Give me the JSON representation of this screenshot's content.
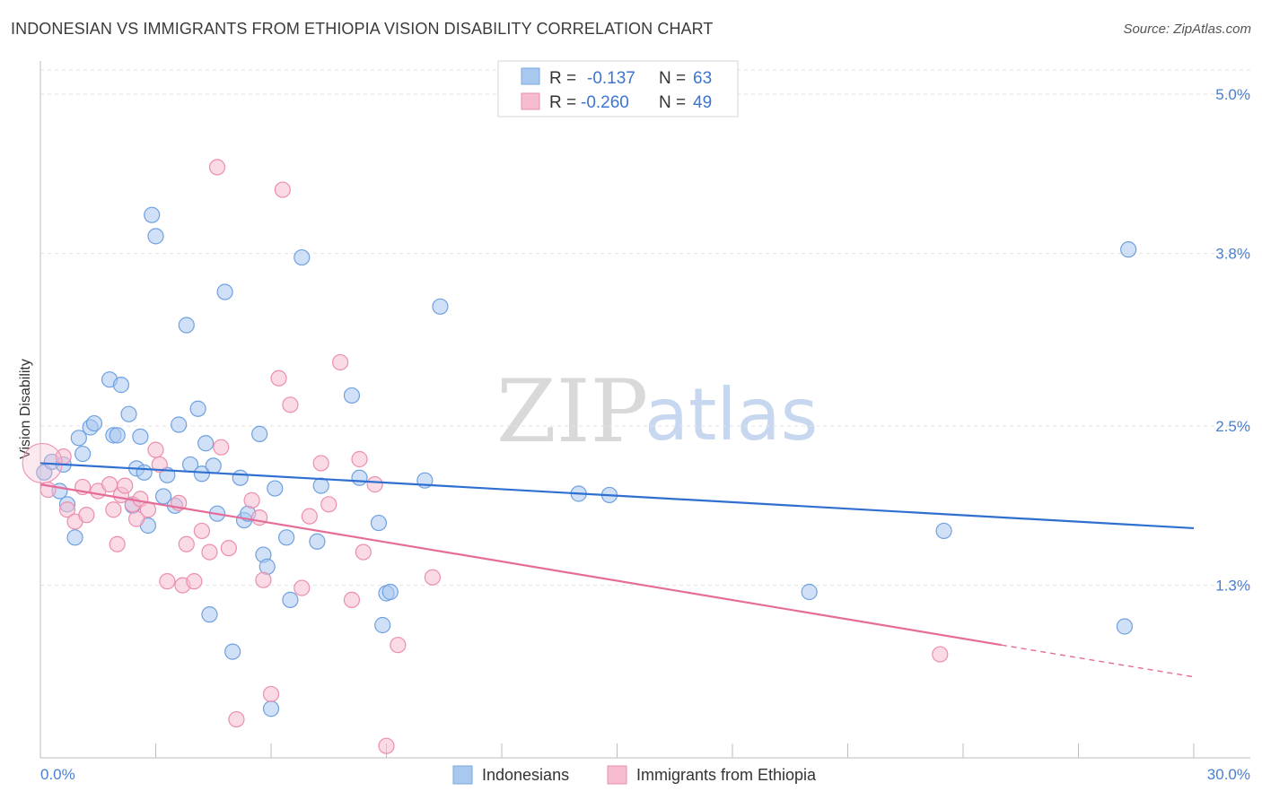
{
  "title": "INDONESIAN VS IMMIGRANTS FROM ETHIOPIA VISION DISABILITY CORRELATION CHART",
  "source": "Source: ZipAtlas.com",
  "watermark": {
    "zip": "ZIP",
    "atlas": "atlas"
  },
  "legend": {
    "rows": [
      {
        "r_label": "R =",
        "r_value": "-0.137",
        "n_label": "N =",
        "n_value": "63",
        "color": "#a9c8f0"
      },
      {
        "r_label": "R =",
        "r_value": "-0.260",
        "n_label": "N =",
        "n_value": "49",
        "color": "#f6bdd0"
      }
    ]
  },
  "bottom_legend": [
    {
      "label": "Indonesians",
      "color": "#a9c8f0"
    },
    {
      "label": "Immigrants from Ethiopia",
      "color": "#f6bdd0"
    }
  ],
  "chart_data": {
    "type": "scatter",
    "title": "INDONESIAN VS IMMIGRANTS FROM ETHIOPIA VISION DISABILITY CORRELATION CHART",
    "xlabel": "",
    "ylabel": "Vision Disability",
    "xlim": [
      0,
      30
    ],
    "ylim": [
      0,
      5.25
    ],
    "x_tick_labels": [
      "0.0%",
      "30.0%"
    ],
    "y_ticks": [
      1.3,
      2.5,
      3.8,
      5.0
    ],
    "y_tick_labels": [
      "1.3%",
      "2.5%",
      "3.8%",
      "5.0%"
    ],
    "grid": true,
    "series": [
      {
        "name": "Indonesians",
        "color": "#a9c8f0",
        "stroke": "#6fa0e0",
        "trend_color": "#2f6fd0",
        "trend": {
          "x0": 0.0,
          "y0": 2.22,
          "x1": 30.0,
          "y1": 1.73
        },
        "points": [
          [
            0.1,
            2.15
          ],
          [
            0.3,
            2.23
          ],
          [
            0.5,
            2.01
          ],
          [
            0.7,
            1.91
          ],
          [
            0.9,
            1.66
          ],
          [
            1.0,
            2.41
          ],
          [
            1.1,
            2.29
          ],
          [
            1.3,
            2.49
          ],
          [
            1.4,
            2.52
          ],
          [
            1.8,
            2.85
          ],
          [
            1.9,
            2.43
          ],
          [
            2.0,
            2.43
          ],
          [
            2.1,
            2.81
          ],
          [
            2.3,
            2.59
          ],
          [
            2.4,
            1.9
          ],
          [
            2.5,
            2.18
          ],
          [
            2.6,
            2.42
          ],
          [
            2.8,
            1.75
          ],
          [
            2.9,
            4.09
          ],
          [
            3.0,
            3.93
          ],
          [
            3.2,
            1.97
          ],
          [
            3.3,
            2.13
          ],
          [
            3.5,
            1.9
          ],
          [
            3.6,
            2.51
          ],
          [
            3.8,
            3.26
          ],
          [
            3.9,
            2.21
          ],
          [
            4.1,
            2.63
          ],
          [
            4.2,
            2.14
          ],
          [
            4.3,
            2.37
          ],
          [
            4.4,
            1.08
          ],
          [
            4.6,
            1.84
          ],
          [
            4.8,
            3.51
          ],
          [
            5.0,
            0.8
          ],
          [
            5.2,
            2.11
          ],
          [
            5.3,
            1.79
          ],
          [
            5.4,
            1.84
          ],
          [
            5.7,
            2.44
          ],
          [
            5.8,
            1.53
          ],
          [
            5.9,
            1.44
          ],
          [
            6.0,
            0.37
          ],
          [
            6.1,
            2.03
          ],
          [
            6.4,
            1.66
          ],
          [
            6.5,
            1.19
          ],
          [
            6.8,
            3.77
          ],
          [
            7.2,
            1.63
          ],
          [
            7.3,
            2.05
          ],
          [
            8.1,
            2.73
          ],
          [
            8.3,
            2.11
          ],
          [
            8.8,
            1.77
          ],
          [
            8.9,
            1.0
          ],
          [
            9.0,
            1.24
          ],
          [
            9.1,
            1.25
          ],
          [
            10.0,
            2.09
          ],
          [
            10.4,
            3.4
          ],
          [
            14.0,
            1.99
          ],
          [
            14.8,
            1.98
          ],
          [
            20.0,
            1.25
          ],
          [
            23.5,
            1.71
          ],
          [
            28.3,
            3.83
          ],
          [
            28.2,
            0.99
          ],
          [
            0.6,
            2.21
          ],
          [
            2.7,
            2.15
          ],
          [
            4.5,
            2.2
          ]
        ]
      },
      {
        "name": "Immigrants from Ethiopia",
        "color": "#f6bdd0",
        "stroke": "#ec8eae",
        "trend_color": "#e46c98",
        "trend": {
          "x0": 0.0,
          "y0": 2.06,
          "x1": 25.0,
          "y1": 0.85
        },
        "trend_dashed": {
          "x0": 25.0,
          "y0": 0.85,
          "x1": 30.0,
          "y1": 0.61
        },
        "points": [
          [
            0.2,
            2.02
          ],
          [
            0.6,
            2.27
          ],
          [
            0.7,
            1.87
          ],
          [
            0.9,
            1.78
          ],
          [
            1.1,
            2.04
          ],
          [
            1.2,
            1.83
          ],
          [
            1.5,
            2.01
          ],
          [
            1.8,
            2.06
          ],
          [
            1.9,
            1.87
          ],
          [
            2.0,
            1.61
          ],
          [
            2.1,
            1.98
          ],
          [
            2.2,
            2.05
          ],
          [
            2.4,
            1.91
          ],
          [
            2.5,
            1.8
          ],
          [
            2.6,
            1.95
          ],
          [
            2.8,
            1.87
          ],
          [
            3.0,
            2.32
          ],
          [
            3.1,
            2.21
          ],
          [
            3.3,
            1.33
          ],
          [
            3.6,
            1.92
          ],
          [
            3.7,
            1.3
          ],
          [
            3.8,
            1.61
          ],
          [
            4.0,
            1.33
          ],
          [
            4.2,
            1.71
          ],
          [
            4.4,
            1.55
          ],
          [
            4.7,
            2.34
          ],
          [
            4.9,
            1.58
          ],
          [
            5.1,
            0.29
          ],
          [
            5.5,
            1.94
          ],
          [
            5.7,
            1.81
          ],
          [
            5.8,
            1.34
          ],
          [
            6.0,
            0.48
          ],
          [
            6.3,
            4.28
          ],
          [
            6.5,
            2.66
          ],
          [
            6.8,
            1.28
          ],
          [
            7.0,
            1.82
          ],
          [
            7.3,
            2.22
          ],
          [
            7.5,
            1.91
          ],
          [
            7.8,
            2.98
          ],
          [
            8.1,
            1.19
          ],
          [
            8.3,
            2.25
          ],
          [
            8.4,
            1.55
          ],
          [
            8.7,
            2.06
          ],
          [
            9.0,
            0.09
          ],
          [
            9.3,
            0.85
          ],
          [
            10.2,
            1.36
          ],
          [
            4.6,
            4.45
          ],
          [
            6.2,
            2.86
          ],
          [
            23.4,
            0.78
          ]
        ]
      }
    ]
  }
}
